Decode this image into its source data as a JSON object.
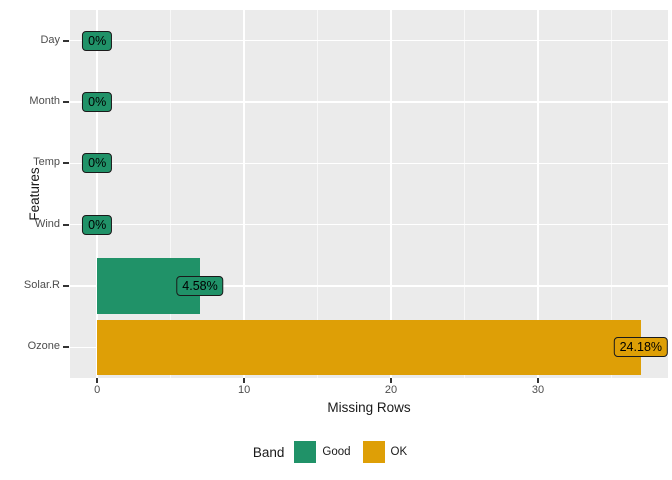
{
  "chart_data": {
    "type": "bar",
    "orientation": "horizontal",
    "title": "",
    "xlabel": "Missing Rows",
    "ylabel": "Features",
    "categories": [
      "Day",
      "Month",
      "Temp",
      "Wind",
      "Solar.R",
      "Ozone"
    ],
    "values": [
      0,
      0,
      0,
      0,
      7,
      37
    ],
    "bar_labels": [
      "0%",
      "0%",
      "0%",
      "0%",
      "4.58%",
      "24.18%"
    ],
    "bands": [
      "Good",
      "Good",
      "Good",
      "Good",
      "Good",
      "OK"
    ],
    "x_ticks": [
      0,
      10,
      20,
      30
    ],
    "x_minor_ticks": [
      5,
      15,
      25,
      35
    ],
    "xlim": [
      -1.85,
      38.85
    ],
    "grid": true,
    "legend_position": "bottom",
    "legend": {
      "title": "Band",
      "entries": [
        {
          "label": "Good",
          "color": "#209268"
        },
        {
          "label": "OK",
          "color": "#DE9F06"
        }
      ]
    }
  },
  "colors": {
    "good_band": "#209268",
    "ok_band": "#DE9F06",
    "panel_background": "#EBEBEB",
    "gridline": "#FFFFFF",
    "axis_text": "#4D4D4D",
    "title_text": "#1A1A1A",
    "label_border": "#000000"
  }
}
